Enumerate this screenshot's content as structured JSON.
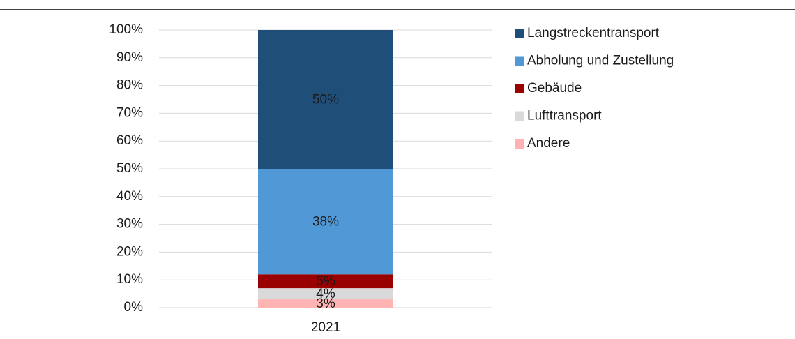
{
  "chart_data": {
    "type": "stacked_bar",
    "categories": [
      "2021"
    ],
    "series": [
      {
        "name": "Andere",
        "color": "#ffb3b3",
        "values": [
          3
        ],
        "value_labels": [
          "3%"
        ]
      },
      {
        "name": "Lufttransport",
        "color": "#d9d9d9",
        "values": [
          4
        ],
        "value_labels": [
          "4%"
        ]
      },
      {
        "name": "Gebäude",
        "color": "#990000",
        "values": [
          5
        ],
        "value_labels": [
          "5%"
        ]
      },
      {
        "name": "Abholung und Zustellung",
        "color": "#5098d6",
        "values": [
          38
        ],
        "value_labels": [
          "38%"
        ]
      },
      {
        "name": "Langstreckentransport",
        "color": "#1f4e79",
        "values": [
          50
        ],
        "value_labels": [
          "50%"
        ]
      }
    ],
    "ylim": [
      0,
      100
    ],
    "yticks": [
      {
        "value": 0,
        "label": "0%"
      },
      {
        "value": 10,
        "label": "10%"
      },
      {
        "value": 20,
        "label": "20%"
      },
      {
        "value": 30,
        "label": "30%"
      },
      {
        "value": 40,
        "label": "40%"
      },
      {
        "value": 50,
        "label": "50%"
      },
      {
        "value": 60,
        "label": "60%"
      },
      {
        "value": 70,
        "label": "70%"
      },
      {
        "value": 80,
        "label": "80%"
      },
      {
        "value": 90,
        "label": "90%"
      },
      {
        "value": 100,
        "label": "100%"
      }
    ],
    "grid": true,
    "legend": "right"
  }
}
